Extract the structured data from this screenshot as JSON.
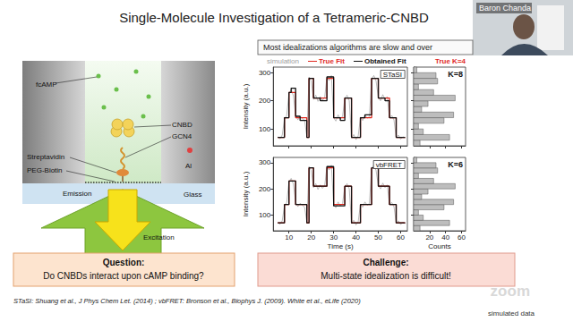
{
  "title": "Single-Molecule Investigation of a Tetrameric-CNBD",
  "presenter": "Baron Chanda",
  "diagram": {
    "labels": [
      "fcAMP",
      "CNBD",
      "GCN4",
      "Streptavidin",
      "PEG-Biotin",
      "Emission",
      "Al",
      "Glass",
      "Excitation"
    ]
  },
  "callout": "Most idealizations algorithms are slow and over",
  "legend_note": {
    "text": "True K=4",
    "color": "#e0291f"
  },
  "chart_data": [
    {
      "type": "line",
      "title": "STaSI",
      "ylabel": "Intensity (a.u.)",
      "tick_labels": "y",
      "xlim": [
        3,
        63
      ],
      "xticks": [
        10,
        20,
        30,
        40,
        50,
        60
      ],
      "ylim": [
        40,
        320
      ],
      "yticks": [
        100,
        200,
        300
      ],
      "x": [
        5,
        6,
        7,
        8,
        9,
        10,
        11,
        12,
        13,
        14,
        15,
        16,
        17,
        18,
        19,
        20,
        21,
        22,
        23,
        24,
        25,
        26,
        27,
        28,
        29,
        30,
        31,
        32,
        33,
        34,
        35,
        36,
        37,
        38,
        39,
        40,
        41,
        42,
        43,
        44,
        45,
        46,
        47,
        48,
        49,
        50,
        51,
        52,
        53,
        54,
        55,
        56,
        57,
        58,
        59,
        60,
        61,
        62
      ],
      "series": [
        {
          "name": "simulation",
          "color": "#9e9e9e",
          "line_style": "solid",
          "values": [
            72,
            65,
            78,
            135,
            148,
            225,
            240,
            218,
            150,
            132,
            145,
            138,
            130,
            75,
            285,
            270,
            205,
            220,
            198,
            215,
            202,
            212,
            285,
            272,
            290,
            140,
            128,
            150,
            135,
            145,
            208,
            220,
            200,
            68,
            80,
            62,
            75,
            142,
            130,
            150,
            138,
            144,
            278,
            290,
            270,
            212,
            200,
            222,
            205,
            215,
            140,
            148,
            132,
            70,
            78,
            64,
            72,
            68
          ]
        },
        {
          "name": "True Fit",
          "color": "#e0291f",
          "line_style": "step",
          "x": [
            5,
            8,
            10,
            13,
            18,
            19,
            21,
            27,
            30,
            35,
            38,
            42,
            47,
            50,
            55,
            58,
            62
          ],
          "values": [
            70,
            140,
            230,
            140,
            70,
            280,
            210,
            280,
            140,
            210,
            70,
            140,
            280,
            210,
            140,
            70,
            70
          ]
        },
        {
          "name": "Obtained Fit",
          "color": "#111111",
          "line_style": "step",
          "x": [
            5,
            8,
            10,
            11,
            13,
            15,
            18,
            19,
            21,
            24,
            27,
            30,
            33,
            35,
            38,
            42,
            44,
            47,
            50,
            53,
            55,
            58,
            62
          ],
          "values": [
            70,
            140,
            230,
            245,
            145,
            130,
            70,
            280,
            210,
            200,
            285,
            140,
            130,
            210,
            70,
            140,
            150,
            280,
            210,
            200,
            140,
            70,
            70
          ]
        }
      ]
    },
    {
      "type": "histogram",
      "title": "K=8",
      "orientation": "horizontal",
      "tick_labels": false,
      "color": "#bdbdbd",
      "xlim": [
        0,
        65
      ],
      "xticks": [
        20,
        40,
        60
      ],
      "ylim": [
        40,
        320
      ],
      "yticks": [
        100,
        200,
        300
      ],
      "bins": [
        40,
        60,
        80,
        100,
        120,
        140,
        160,
        180,
        200,
        220,
        240,
        260,
        280,
        300,
        320
      ],
      "counts": [
        8,
        45,
        12,
        6,
        38,
        50,
        10,
        18,
        52,
        25,
        6,
        30,
        28,
        4
      ]
    },
    {
      "type": "line",
      "title": "vbFRET",
      "xlabel": "Time (s)",
      "ylabel": "Intensity (a.u.)",
      "xlim": [
        3,
        63
      ],
      "xticks": [
        10,
        20,
        30,
        40,
        50,
        60
      ],
      "ylim": [
        40,
        320
      ],
      "yticks": [
        100,
        200,
        300
      ],
      "x": [
        5,
        6,
        7,
        8,
        9,
        10,
        11,
        12,
        13,
        14,
        15,
        16,
        17,
        18,
        19,
        20,
        21,
        22,
        23,
        24,
        25,
        26,
        27,
        28,
        29,
        30,
        31,
        32,
        33,
        34,
        35,
        36,
        37,
        38,
        39,
        40,
        41,
        42,
        43,
        44,
        45,
        46,
        47,
        48,
        49,
        50,
        51,
        52,
        53,
        54,
        55,
        56,
        57,
        58,
        59,
        60,
        61,
        62
      ],
      "series": [
        {
          "name": "simulation",
          "color": "#9e9e9e",
          "line_style": "solid",
          "values": [
            72,
            65,
            78,
            135,
            148,
            225,
            240,
            218,
            150,
            132,
            145,
            138,
            130,
            75,
            285,
            270,
            205,
            220,
            198,
            215,
            202,
            212,
            285,
            272,
            290,
            140,
            128,
            150,
            135,
            145,
            208,
            220,
            200,
            68,
            80,
            62,
            75,
            142,
            130,
            150,
            138,
            144,
            278,
            290,
            270,
            212,
            200,
            222,
            205,
            215,
            140,
            148,
            132,
            70,
            78,
            64,
            72,
            68
          ]
        },
        {
          "name": "True Fit",
          "color": "#e0291f",
          "line_style": "step",
          "x": [
            5,
            8,
            10,
            13,
            18,
            19,
            21,
            27,
            30,
            35,
            38,
            42,
            47,
            50,
            55,
            58,
            62
          ],
          "values": [
            70,
            140,
            230,
            140,
            70,
            280,
            210,
            280,
            140,
            210,
            70,
            140,
            280,
            210,
            140,
            70,
            70
          ]
        },
        {
          "name": "Obtained Fit",
          "color": "#111111",
          "line_style": "step",
          "x": [
            5,
            8,
            10,
            13,
            18,
            19,
            21,
            27,
            30,
            35,
            38,
            42,
            47,
            50,
            55,
            58,
            62
          ],
          "values": [
            70,
            140,
            230,
            140,
            70,
            280,
            210,
            285,
            135,
            210,
            70,
            140,
            280,
            210,
            140,
            70,
            70
          ]
        }
      ]
    },
    {
      "type": "histogram",
      "title": "K=6",
      "orientation": "horizontal",
      "tick_labels": "x",
      "xlabel": "Counts",
      "color": "#bdbdbd",
      "xlim": [
        0,
        65
      ],
      "xticks": [
        20,
        40,
        60
      ],
      "ylim": [
        40,
        320
      ],
      "yticks": [
        100,
        200,
        300
      ],
      "bins": [
        40,
        60,
        80,
        100,
        120,
        140,
        160,
        180,
        200,
        220,
        240,
        260,
        280,
        300,
        320
      ],
      "counts": [
        8,
        45,
        12,
        6,
        38,
        50,
        10,
        18,
        52,
        25,
        6,
        30,
        28,
        4
      ]
    }
  ],
  "question": {
    "heading": "Question:",
    "text": "Do CNBDs interact upon cAMP binding?"
  },
  "challenge": {
    "heading": "Challenge:",
    "text": "Multi-state idealization is difficult!"
  },
  "citation": "STaSI: Shuang et al., J Phys Chem Let. (2014) ; vbFRET: Bronson et al., Biophys J. (2009). White et al., eLife (2020)",
  "footnote": "simulated data",
  "watermark": "zoom"
}
